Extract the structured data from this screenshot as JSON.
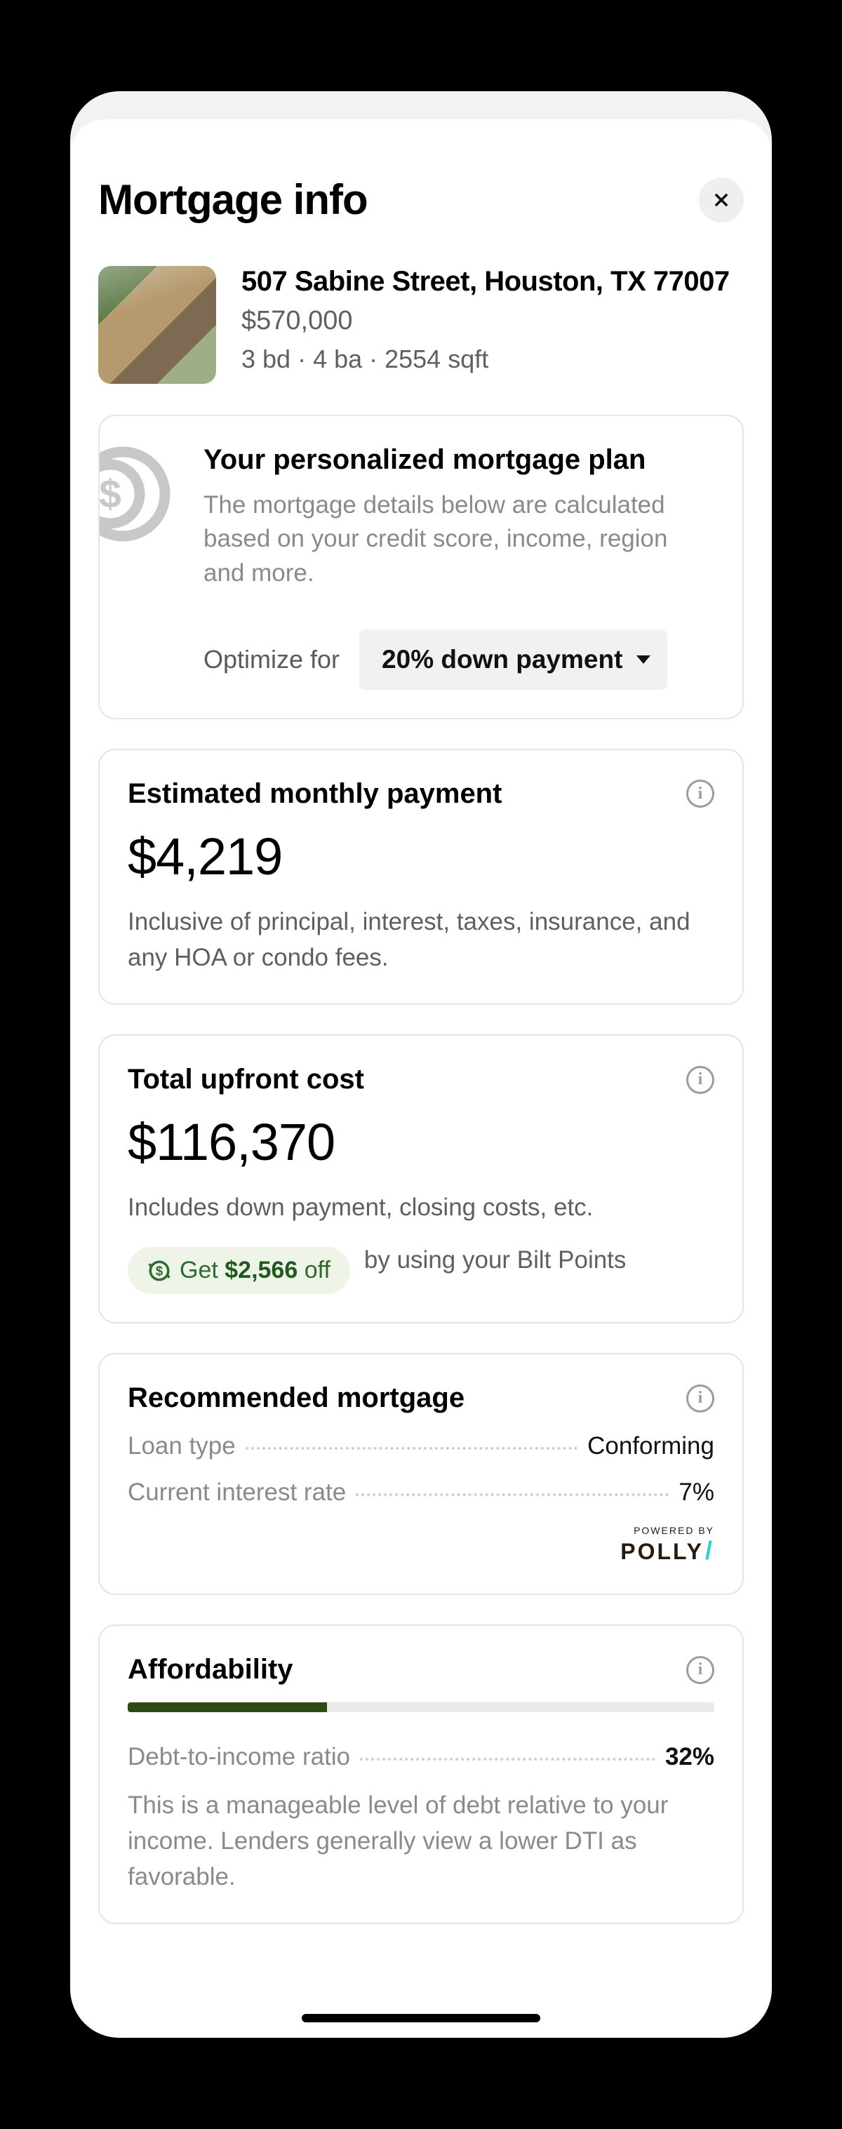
{
  "header": {
    "title": "Mortgage info"
  },
  "property": {
    "address": "507 Sabine Street, Houston, TX 77007",
    "price": "$570,000",
    "stats": "3 bd · 4 ba · 2554 sqft"
  },
  "plan": {
    "title": "Your personalized mortgage plan",
    "description": "The mortgage details below are calculated based on your credit score, income, region and more.",
    "optimize_label": "Optimize for",
    "optimize_value": "20% down payment"
  },
  "monthly": {
    "title": "Estimated monthly payment",
    "amount": "$4,219",
    "description": "Inclusive of principal, interest, taxes, insurance, and any HOA or condo fees."
  },
  "upfront": {
    "title": "Total upfront cost",
    "amount": "$116,370",
    "description": "Includes down payment, closing costs, etc.",
    "pill_prefix": "Get ",
    "pill_amount": "$2,566",
    "pill_suffix": " off",
    "pill_after": "by using your Bilt Points"
  },
  "recommended": {
    "title": "Recommended mortgage",
    "loan_type_label": "Loan type",
    "loan_type_value": "Conforming",
    "rate_label": "Current interest rate",
    "rate_value": "7%",
    "powered_label": "POWERED BY",
    "brand": "POLLY"
  },
  "affordability": {
    "title": "Affordability",
    "bar_percent": 34,
    "dti_label": "Debt-to-income ratio",
    "dti_value": "32%",
    "description": "This is a manageable level of debt relative to your income. Lenders generally view a lower DTI as favorable."
  },
  "style": {
    "accent_green": "#2e4b16",
    "pill_bg": "#eef4e8",
    "pill_text": "#2f6b2f",
    "muted": "#8a8a8a",
    "text": "#000000",
    "border": "#e5e5e5",
    "track": "#e9e9e9",
    "polly_accent": "#2ad1c9"
  }
}
